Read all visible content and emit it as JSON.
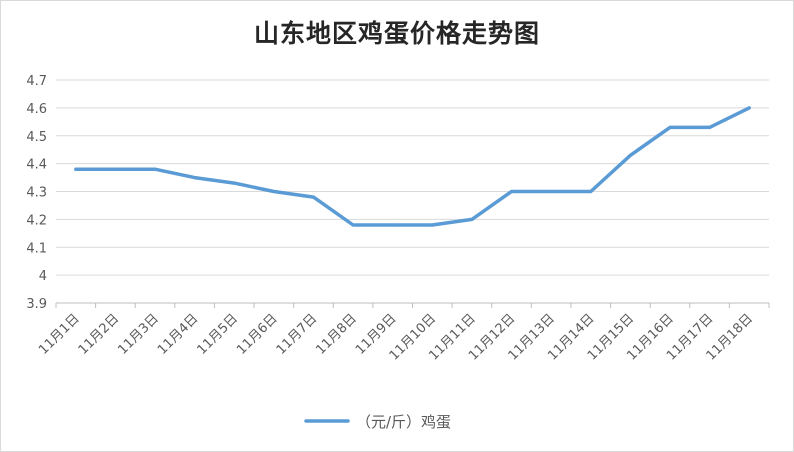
{
  "chart_data": {
    "type": "line",
    "title": "山东地区鸡蛋价格走势图",
    "xlabel": "",
    "ylabel": "",
    "categories": [
      "11月1日",
      "11月2日",
      "11月3日",
      "11月4日",
      "11月5日",
      "11月6日",
      "11月7日",
      "11月8日",
      "11月9日",
      "11月10日",
      "11月11日",
      "11月12日",
      "11月13日",
      "11月14日",
      "11月15日",
      "11月16日",
      "11月17日",
      "11月18日"
    ],
    "series": [
      {
        "name": "（元/斤）鸡蛋",
        "color": "#5b9bd5",
        "values": [
          4.38,
          4.38,
          4.38,
          4.35,
          4.33,
          4.3,
          4.28,
          4.18,
          4.18,
          4.18,
          4.2,
          4.3,
          4.3,
          4.3,
          4.43,
          4.53,
          4.53,
          4.6
        ]
      }
    ],
    "ylim": [
      3.9,
      4.7
    ],
    "yticks": [
      "3.9",
      "4",
      "4.1",
      "4.2",
      "4.3",
      "4.4",
      "4.5",
      "4.6",
      "4.7"
    ],
    "grid": true,
    "legend_position": "bottom"
  }
}
